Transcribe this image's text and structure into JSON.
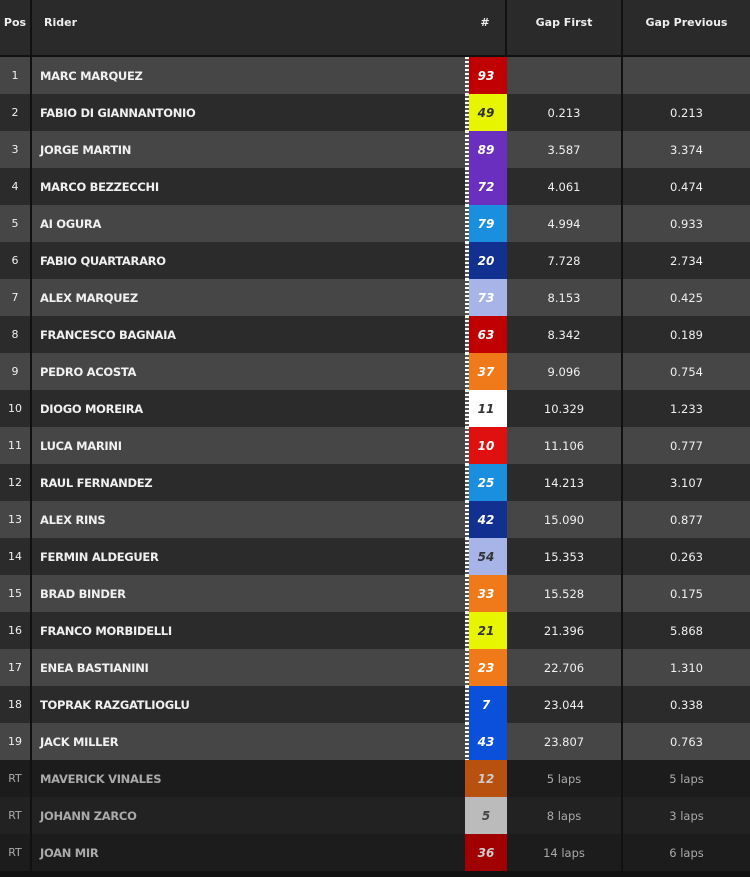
{
  "headers": {
    "pos": "Pos",
    "rider": "Rider",
    "num": "#",
    "gap_first": "Gap First",
    "gap_previous": "Gap Previous"
  },
  "rows": [
    {
      "pos": "1",
      "rider": "MARC MARQUEZ",
      "num": "93",
      "color": "#c00000",
      "text": "#fff",
      "gf": "",
      "gp": "",
      "finished": true
    },
    {
      "pos": "2",
      "rider": "FABIO DI GIANNANTONIO",
      "num": "49",
      "color": "#e8f500",
      "text": "#333",
      "gf": "0.213",
      "gp": "0.213",
      "finished": true
    },
    {
      "pos": "3",
      "rider": "JORGE MARTIN",
      "num": "89",
      "color": "#6a2fbf",
      "text": "#fff",
      "gf": "3.587",
      "gp": "3.374",
      "finished": true
    },
    {
      "pos": "4",
      "rider": "MARCO BEZZECCHI",
      "num": "72",
      "color": "#6a2fbf",
      "text": "#fff",
      "gf": "4.061",
      "gp": "0.474",
      "finished": true
    },
    {
      "pos": "5",
      "rider": "AI OGURA",
      "num": "79",
      "color": "#1a8fe0",
      "text": "#fff",
      "gf": "4.994",
      "gp": "0.933",
      "finished": true
    },
    {
      "pos": "6",
      "rider": "FABIO QUARTARARO",
      "num": "20",
      "color": "#12308f",
      "text": "#fff",
      "gf": "7.728",
      "gp": "2.734",
      "finished": true
    },
    {
      "pos": "7",
      "rider": "ALEX MARQUEZ",
      "num": "73",
      "color": "#a7b4e8",
      "text": "#fff",
      "gf": "8.153",
      "gp": "0.425",
      "finished": true
    },
    {
      "pos": "8",
      "rider": "FRANCESCO BAGNAIA",
      "num": "63",
      "color": "#c00000",
      "text": "#fff",
      "gf": "8.342",
      "gp": "0.189",
      "finished": true
    },
    {
      "pos": "9",
      "rider": "PEDRO ACOSTA",
      "num": "37",
      "color": "#f07a1a",
      "text": "#fff",
      "gf": "9.096",
      "gp": "0.754",
      "finished": true
    },
    {
      "pos": "10",
      "rider": "DIOGO MOREIRA",
      "num": "11",
      "color": "#ffffff",
      "text": "#333",
      "gf": "10.329",
      "gp": "1.233",
      "finished": true
    },
    {
      "pos": "11",
      "rider": "LUCA MARINI",
      "num": "10",
      "color": "#e01010",
      "text": "#fff",
      "gf": "11.106",
      "gp": "0.777",
      "finished": true
    },
    {
      "pos": "12",
      "rider": "RAUL FERNANDEZ",
      "num": "25",
      "color": "#1a8fe0",
      "text": "#fff",
      "gf": "14.213",
      "gp": "3.107",
      "finished": true
    },
    {
      "pos": "13",
      "rider": "ALEX RINS",
      "num": "42",
      "color": "#12308f",
      "text": "#fff",
      "gf": "15.090",
      "gp": "0.877",
      "finished": true
    },
    {
      "pos": "14",
      "rider": "FERMIN ALDEGUER",
      "num": "54",
      "color": "#a7b4e8",
      "text": "#333",
      "gf": "15.353",
      "gp": "0.263",
      "finished": true
    },
    {
      "pos": "15",
      "rider": "BRAD BINDER",
      "num": "33",
      "color": "#f07a1a",
      "text": "#fff",
      "gf": "15.528",
      "gp": "0.175",
      "finished": true
    },
    {
      "pos": "16",
      "rider": "FRANCO MORBIDELLI",
      "num": "21",
      "color": "#e8f500",
      "text": "#333",
      "gf": "21.396",
      "gp": "5.868",
      "finished": true
    },
    {
      "pos": "17",
      "rider": "ENEA BASTIANINI",
      "num": "23",
      "color": "#f07a1a",
      "text": "#fff",
      "gf": "22.706",
      "gp": "1.310",
      "finished": true
    },
    {
      "pos": "18",
      "rider": "TOPRAK RAZGATLIOGLU",
      "num": "7",
      "color": "#0a50d8",
      "text": "#fff",
      "gf": "23.044",
      "gp": "0.338",
      "finished": true
    },
    {
      "pos": "19",
      "rider": "JACK MILLER",
      "num": "43",
      "color": "#0a50d8",
      "text": "#fff",
      "gf": "23.807",
      "gp": "0.763",
      "finished": true
    },
    {
      "pos": "RT",
      "rider": "MAVERICK VINALES",
      "num": "12",
      "color": "#b8500f",
      "text": "#ccc",
      "gf": "5 laps",
      "gp": "5 laps",
      "finished": false
    },
    {
      "pos": "RT",
      "rider": "JOHANN ZARCO",
      "num": "5",
      "color": "#bbbbbb",
      "text": "#444",
      "gf": "8 laps",
      "gp": "3 laps",
      "finished": false
    },
    {
      "pos": "RT",
      "rider": "JOAN MIR",
      "num": "36",
      "color": "#a00000",
      "text": "#ccc",
      "gf": "14 laps",
      "gp": "6 laps",
      "finished": false
    }
  ]
}
